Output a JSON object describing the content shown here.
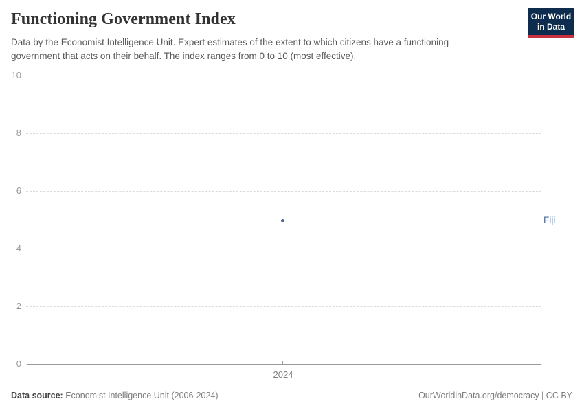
{
  "header": {
    "title": "Functioning Government Index",
    "subtitle": "Data by the Economist Intelligence Unit. Expert estimates of the extent to which citizens have a functioning government that acts on their behalf. The index ranges from 0 to 10 (most effective).",
    "logo": {
      "line1": "Our World",
      "line2": "in Data",
      "bg_color": "#0d2c4e",
      "accent_color": "#c93040"
    }
  },
  "chart_data": {
    "type": "scatter",
    "title": "Functioning Government Index",
    "series": [
      {
        "name": "Fiji",
        "x": [
          2024
        ],
        "values": [
          5.0
        ],
        "color": "#4c6a9c"
      }
    ],
    "entity_label": "Fiji",
    "xticks": [
      "2024"
    ],
    "ytick_labels": [
      "10",
      "8",
      "6",
      "4",
      "2",
      "0"
    ],
    "ylim": [
      0,
      10
    ],
    "xlabel": "",
    "ylabel": "",
    "grid": "horizontal-dashed",
    "legend_position": "right-of-point",
    "axis_color": "#999999",
    "gridline_color": "#dadada"
  },
  "footer": {
    "source_label": "Data source:",
    "source_text": " Economist Intelligence Unit (2006-2024)",
    "link_text": "OurWorldinData.org/democracy | CC BY"
  }
}
